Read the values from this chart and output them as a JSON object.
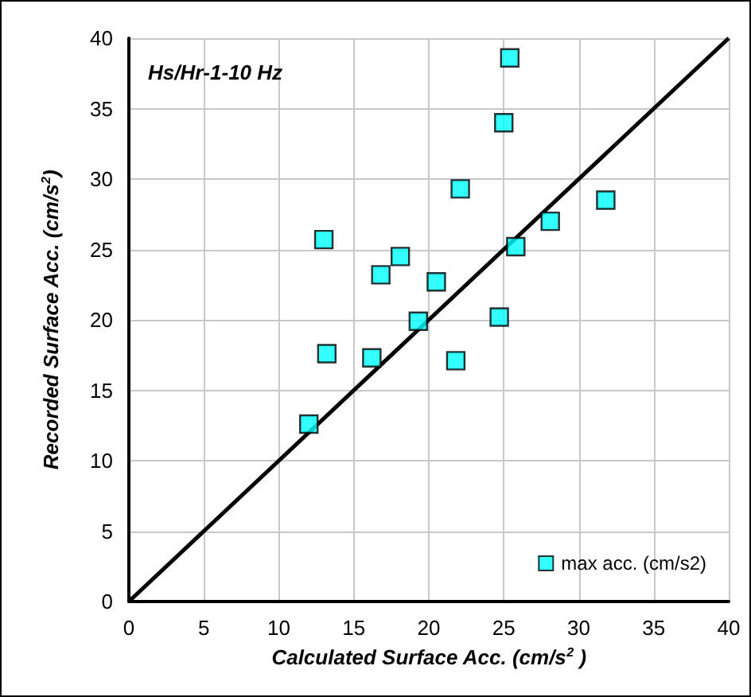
{
  "chart_data": {
    "type": "scatter",
    "xlabel": "Calculated Surface Acc. (cm/s$^{2}$ )",
    "ylabel": "Recorded Surface Acc. (cm/s$^{2}$)",
    "annotations": [
      "Hs/Hr-1-10 Hz"
    ],
    "series": [
      {
        "name": "max acc. (cm/s2)",
        "color": "#00ffff",
        "marker": "square",
        "x": [
          12,
          13,
          13.2,
          16.2,
          16.8,
          18.1,
          19.3,
          20.5,
          22.1,
          21.8,
          24.7,
          25,
          25.4,
          25.8,
          28.1,
          31.8
        ],
        "values": [
          12.6,
          25.7,
          17.6,
          17.3,
          23.2,
          24.5,
          19.9,
          22.7,
          29.3,
          17.1,
          20.2,
          34,
          38.6,
          25.2,
          27,
          28.5
        ]
      },
      {
        "type": "line",
        "color": "#000000",
        "marker": "none",
        "line_style": "solid",
        "x": [
          0,
          40
        ],
        "values": [
          0,
          40
        ]
      }
    ],
    "xlim": [
      0,
      40
    ],
    "ylim": [
      0,
      40
    ],
    "xticks": [
      0,
      5,
      10,
      15,
      20,
      25,
      30,
      35,
      40
    ],
    "yticks": [
      0,
      5,
      10,
      15,
      20,
      25,
      30,
      35,
      40
    ],
    "grid": true,
    "legend": "bottom right"
  }
}
